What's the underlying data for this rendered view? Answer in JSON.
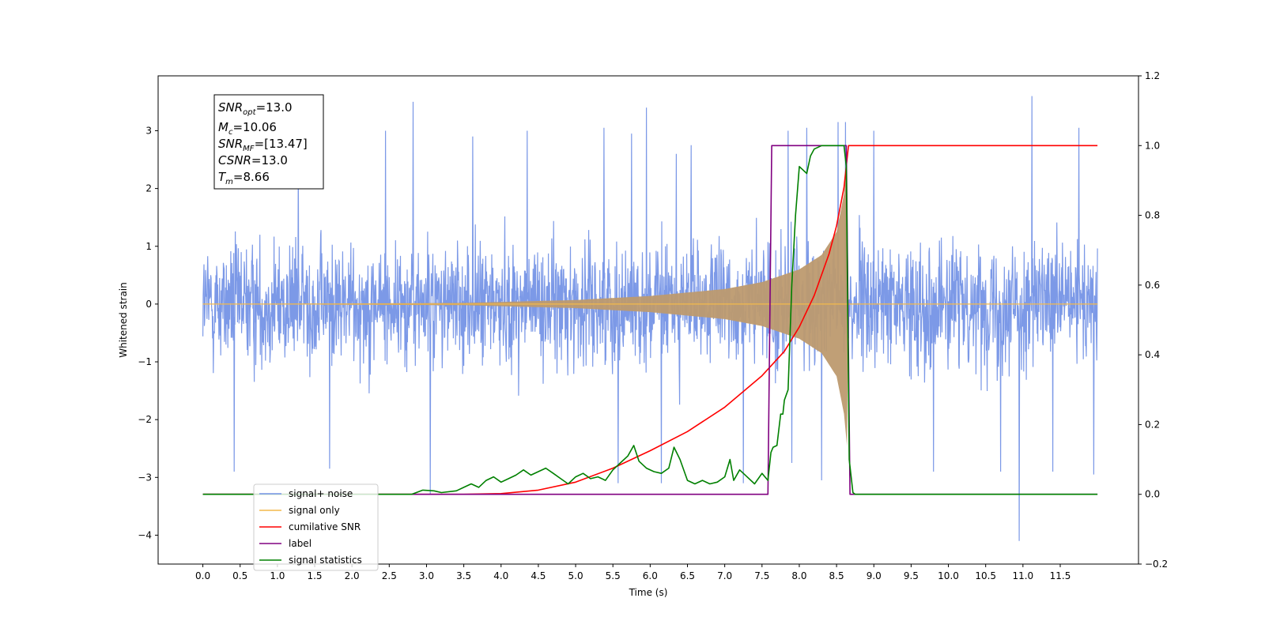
{
  "chart_data": {
    "type": "line",
    "xlabel": "Time (s)",
    "ylabel": "Whitened strain",
    "xlim": [
      -0.6,
      12.55
    ],
    "ylim": [
      -4.5,
      3.95
    ],
    "y2lim": [
      -0.2,
      1.2
    ],
    "grid": false,
    "legend_position": "lower-left",
    "x_ticks": [
      "0.0",
      "0.5",
      "1.0",
      "1.5",
      "2.0",
      "2.5",
      "3.0",
      "3.5",
      "4.0",
      "4.5",
      "5.0",
      "5.5",
      "6.0",
      "6.5",
      "7.0",
      "7.5",
      "8.0",
      "8.5",
      "9.0",
      "9.5",
      "10.0",
      "10.5",
      "11.0",
      "11.5"
    ],
    "y_ticks": [
      "−4",
      "−3",
      "−2",
      "−1",
      "0",
      "1",
      "2",
      "3"
    ],
    "y2_ticks": [
      "−0.2",
      "0.0",
      "0.2",
      "0.4",
      "0.6",
      "0.8",
      "1.0",
      "1.2"
    ],
    "annotation": {
      "snr_opt": "13.0",
      "mc": "10.06",
      "snr_mf": "[13.47]",
      "csnr": "13.0",
      "tm": "8.66"
    },
    "series": [
      {
        "name": "signal+ noise",
        "color": "#7593e6",
        "axis": "left",
        "x_range": [
          0.0,
          12.0
        ],
        "typical_amplitude": 1.1,
        "spikes": [
          [
            0.42,
            -2.9
          ],
          [
            1.28,
            2.6
          ],
          [
            1.7,
            -2.85
          ],
          [
            2.45,
            3.0
          ],
          [
            2.82,
            3.5
          ],
          [
            3.05,
            -3.3
          ],
          [
            3.62,
            2.9
          ],
          [
            4.35,
            3.0
          ],
          [
            5.38,
            3.05
          ],
          [
            5.57,
            -3.1
          ],
          [
            5.75,
            2.95
          ],
          [
            5.95,
            3.4
          ],
          [
            6.15,
            -3.1
          ],
          [
            6.35,
            2.6
          ],
          [
            6.55,
            2.75
          ],
          [
            7.25,
            -3.1
          ],
          [
            7.85,
            3.0
          ],
          [
            7.9,
            -2.75
          ],
          [
            8.1,
            3.05
          ],
          [
            8.3,
            -3.05
          ],
          [
            8.52,
            3.15
          ],
          [
            8.62,
            3.15
          ],
          [
            9.0,
            3.0
          ],
          [
            9.8,
            -2.9
          ],
          [
            10.7,
            -2.9
          ],
          [
            10.95,
            -4.1
          ],
          [
            11.12,
            3.6
          ],
          [
            11.4,
            -2.9
          ],
          [
            11.75,
            3.05
          ],
          [
            11.95,
            -2.95
          ]
        ]
      },
      {
        "name": "signal only",
        "color": "#f3b94b",
        "axis": "left",
        "x": [
          0.0,
          3.5,
          5.0,
          6.0,
          7.0,
          7.5,
          8.0,
          8.3,
          8.5,
          8.6,
          8.65,
          8.66,
          12.0
        ],
        "envelope": [
          0.0,
          0.02,
          0.07,
          0.14,
          0.26,
          0.38,
          0.6,
          0.85,
          1.25,
          1.9,
          2.6,
          0.0,
          0.0
        ]
      },
      {
        "name": "cumilative SNR",
        "color": "#ff0000",
        "axis": "right",
        "x": [
          0.0,
          3.5,
          4.0,
          4.5,
          5.0,
          5.5,
          6.0,
          6.5,
          7.0,
          7.5,
          7.8,
          8.0,
          8.2,
          8.4,
          8.5,
          8.6,
          8.66,
          8.67,
          12.0
        ],
        "y": [
          0.0,
          0.0,
          0.002,
          0.012,
          0.035,
          0.075,
          0.125,
          0.18,
          0.25,
          0.34,
          0.41,
          0.48,
          0.57,
          0.69,
          0.77,
          0.88,
          1.0,
          1.0,
          1.0
        ]
      },
      {
        "name": "label",
        "color": "#800080",
        "axis": "right",
        "x": [
          0.0,
          7.58,
          7.63,
          8.63,
          8.68,
          12.0
        ],
        "y": [
          0.0,
          0.0,
          1.0,
          1.0,
          0.0,
          0.0
        ]
      },
      {
        "name": "signal statistics",
        "color": "#008000",
        "axis": "right",
        "x": [
          0.0,
          0.3,
          2.0,
          2.8,
          2.95,
          3.1,
          3.2,
          3.4,
          3.5,
          3.6,
          3.7,
          3.8,
          3.9,
          4.0,
          4.1,
          4.2,
          4.3,
          4.4,
          4.5,
          4.6,
          4.7,
          4.8,
          4.9,
          5.0,
          5.1,
          5.2,
          5.3,
          5.4,
          5.5,
          5.6,
          5.7,
          5.78,
          5.85,
          5.95,
          6.05,
          6.15,
          6.25,
          6.32,
          6.4,
          6.5,
          6.6,
          6.7,
          6.8,
          6.9,
          7.0,
          7.07,
          7.12,
          7.2,
          7.3,
          7.4,
          7.5,
          7.58,
          7.62,
          7.65,
          7.7,
          7.75,
          7.78,
          7.8,
          7.85,
          7.9,
          7.95,
          8.0,
          8.05,
          8.1,
          8.15,
          8.2,
          8.3,
          8.4,
          8.5,
          8.6,
          8.63,
          8.67,
          8.72,
          8.75,
          12.0
        ],
        "y": [
          0.0,
          0.0,
          0.0,
          0.0,
          0.012,
          0.01,
          0.005,
          0.01,
          0.02,
          0.03,
          0.02,
          0.04,
          0.05,
          0.035,
          0.045,
          0.055,
          0.07,
          0.055,
          0.065,
          0.075,
          0.06,
          0.045,
          0.03,
          0.05,
          0.06,
          0.045,
          0.05,
          0.04,
          0.07,
          0.09,
          0.11,
          0.14,
          0.095,
          0.075,
          0.065,
          0.06,
          0.075,
          0.135,
          0.1,
          0.04,
          0.03,
          0.04,
          0.03,
          0.035,
          0.05,
          0.1,
          0.04,
          0.07,
          0.05,
          0.03,
          0.06,
          0.04,
          0.12,
          0.135,
          0.14,
          0.23,
          0.23,
          0.27,
          0.3,
          0.6,
          0.8,
          0.94,
          0.93,
          0.92,
          0.97,
          0.99,
          1.0,
          1.0,
          1.0,
          1.0,
          0.94,
          0.1,
          0.005,
          0.0,
          0.0
        ]
      }
    ]
  }
}
